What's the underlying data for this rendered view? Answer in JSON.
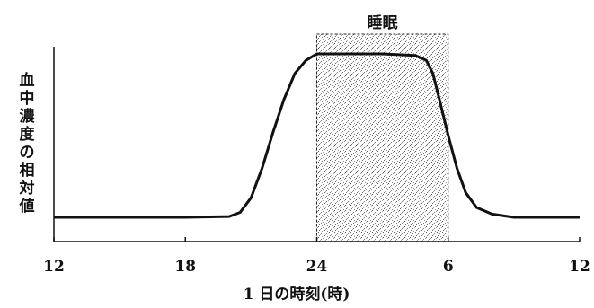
{
  "chart_data": {
    "type": "line",
    "title": "",
    "xlabel": "1 日の時刻(時)",
    "ylabel": "血中濃度の相対値",
    "x_ticks": [
      "12",
      "18",
      "24",
      "6",
      "12"
    ],
    "xlim_hours": [
      12,
      36
    ],
    "ylim": [
      0,
      1
    ],
    "shaded_band": {
      "label": "睡眠",
      "start_hour": 24,
      "end_hour": 30
    },
    "series": [
      {
        "x": [
          12,
          15,
          18,
          20,
          20.5,
          21,
          21.5,
          22,
          22.5,
          23,
          23.5,
          24,
          25,
          27,
          28.5,
          29,
          29.3,
          29.6,
          30,
          30.4,
          30.8,
          31.3,
          32,
          33,
          36
        ],
        "y": [
          0.0,
          0.0,
          0.0,
          0.005,
          0.03,
          0.12,
          0.3,
          0.52,
          0.72,
          0.88,
          0.96,
          1.0,
          1.0,
          1.0,
          0.99,
          0.96,
          0.88,
          0.72,
          0.5,
          0.3,
          0.15,
          0.06,
          0.02,
          0.0,
          0.0
        ]
      }
    ],
    "grid": false
  }
}
